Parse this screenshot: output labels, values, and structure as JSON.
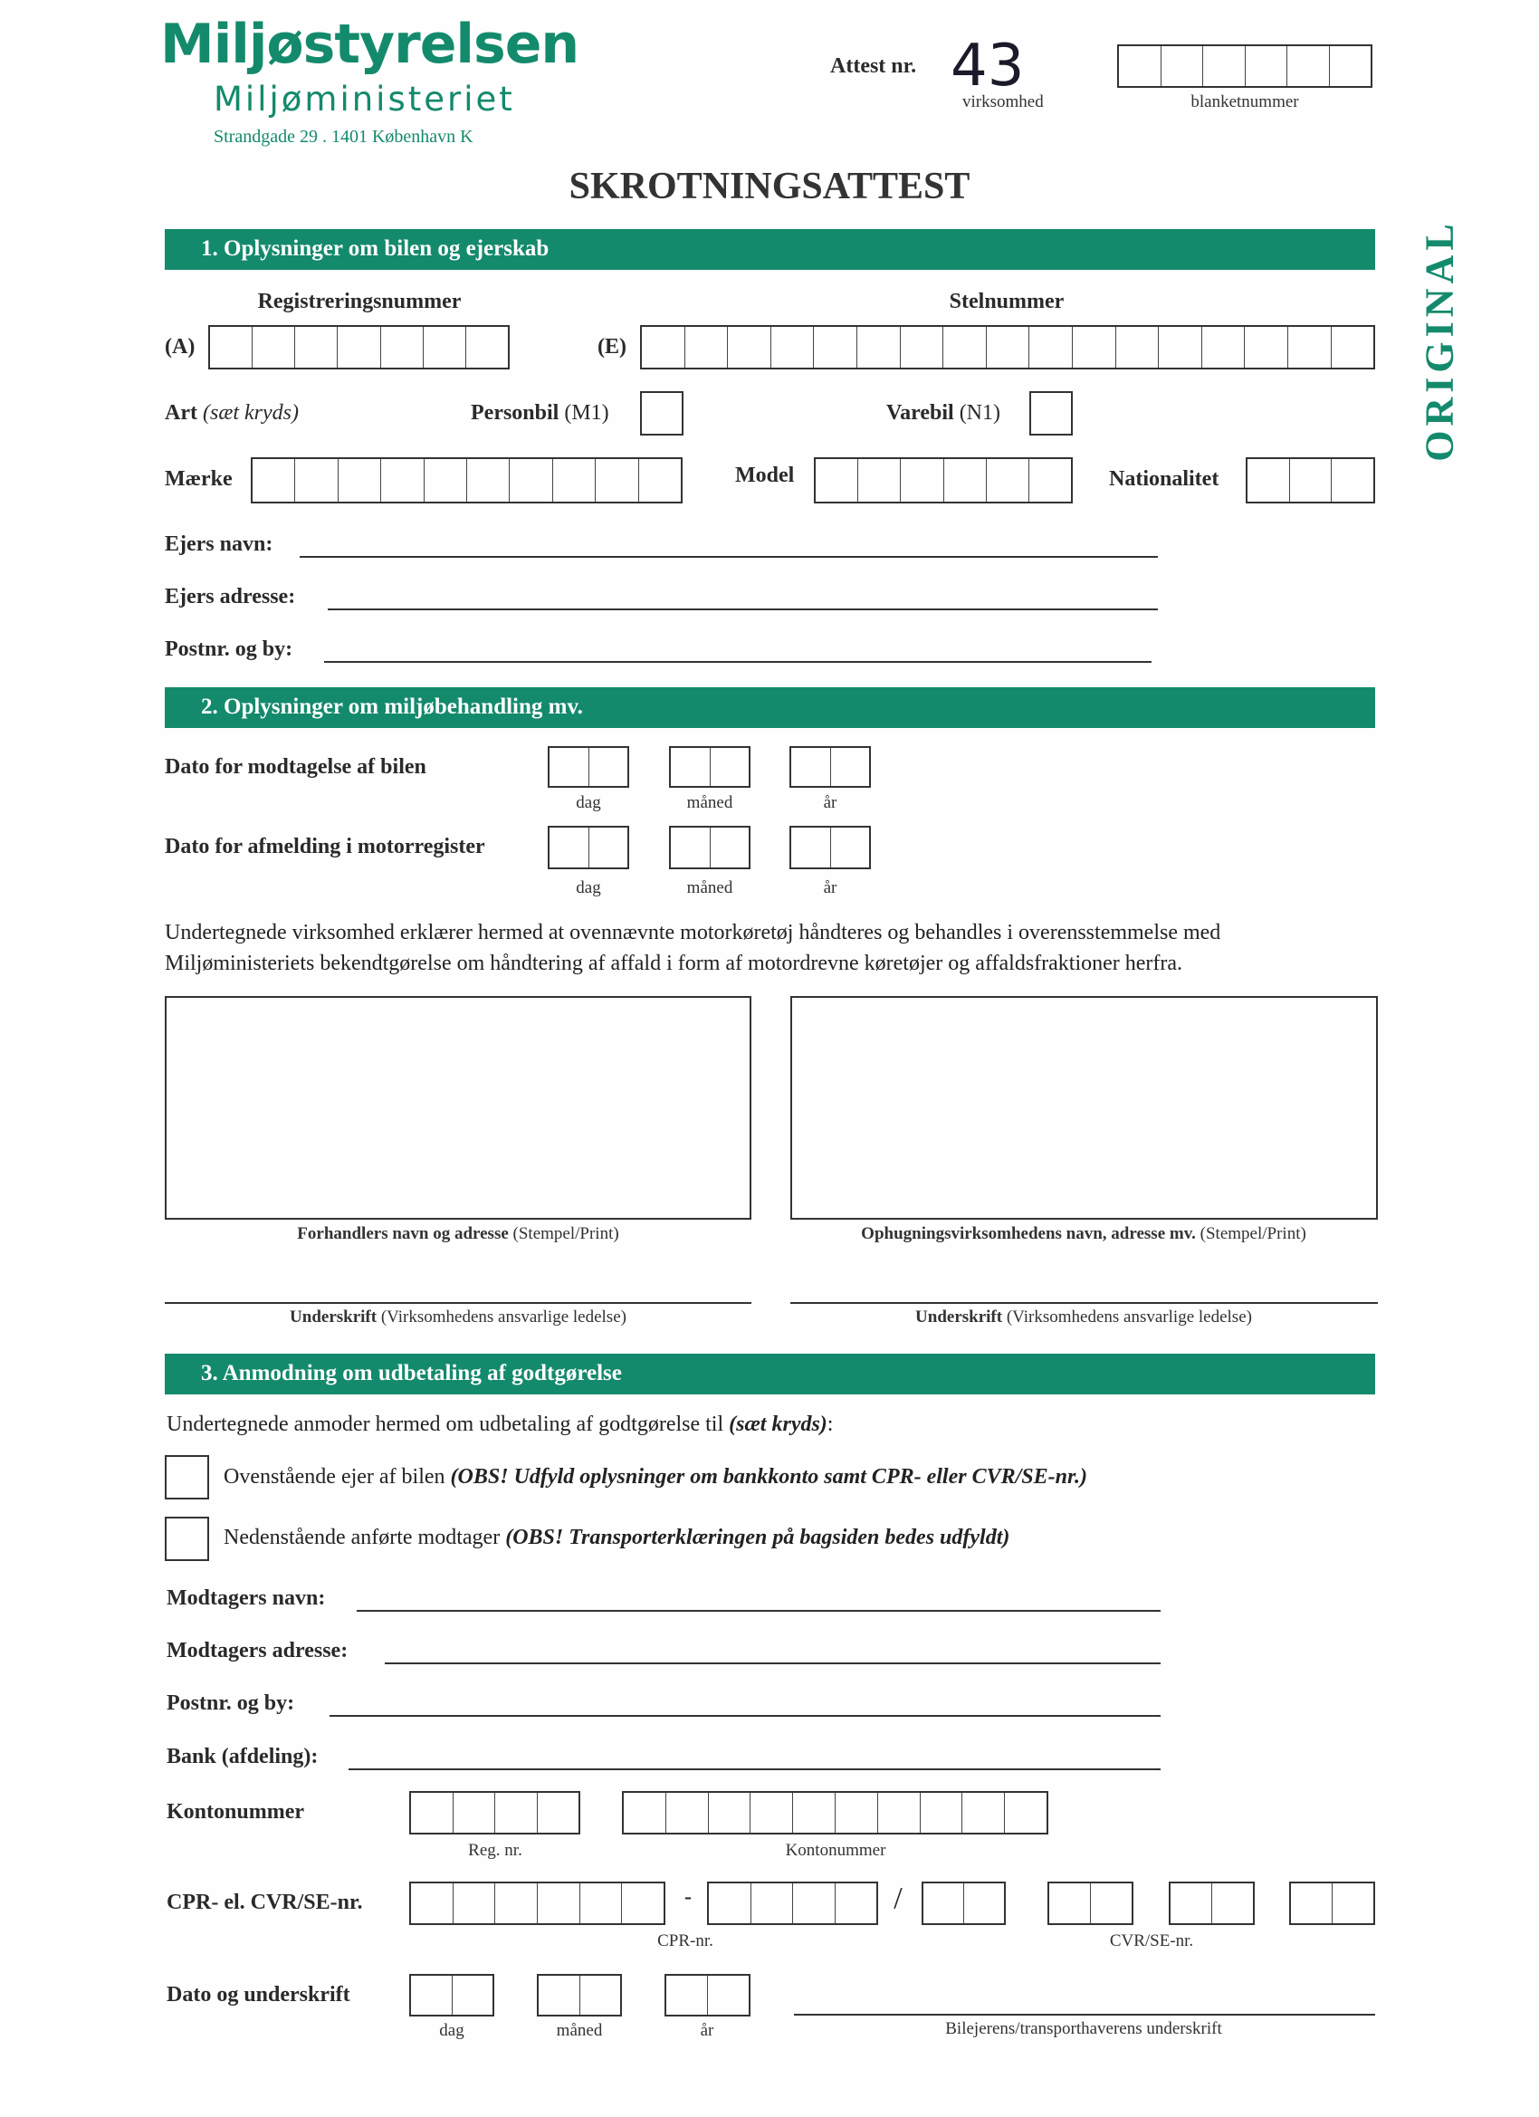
{
  "header": {
    "org": "Miljøstyrelsen",
    "ministry": "Miljøministeriet",
    "address": "Strandgade 29 . 1401 København K",
    "attest_label": "Attest nr.",
    "attest_number": "43",
    "virksomhed": "virksomhed",
    "blanketnummer": "blanketnummer",
    "title": "SKROTNINGSATTEST",
    "original": "ORIGINAL",
    "brand_color": "#148a6c"
  },
  "s1": {
    "heading": "1. Oplysninger om bilen og ejerskab",
    "reg_label": "Registreringsnummer",
    "stel_label": "Stelnummer",
    "a": "(A)",
    "e": "(E)",
    "art": "Art",
    "art_hint": "(sæt kryds)",
    "personbil": "Personbil",
    "m1": "(M1)",
    "varebil": "Varebil",
    "n1": "(N1)",
    "maerke": "Mærke",
    "model": "Model",
    "nationalitet": "Nationalitet",
    "ejers_navn": "Ejers navn:",
    "ejers_adresse": "Ejers adresse:",
    "postnr": "Postnr. og by:"
  },
  "s2": {
    "heading": "2. Oplysninger om miljøbehandling mv.",
    "dato_modtagelse": "Dato for modtagelse af bilen",
    "dato_afmelding": "Dato for afmelding i motorregister",
    "dag": "dag",
    "maaned": "måned",
    "aar": "år",
    "para1": "Undertegnede virksomhed erklærer hermed at ovennævnte motorkøretøj håndteres og behandles i overensstemmelse med",
    "para2": "Miljøministeriets bekendtgørelse om håndtering af affald i form af motordrevne køretøjer og affaldsfraktioner herfra.",
    "box_left_bold": "Forhandlers navn og adresse",
    "box_left_rest": "(Stempel/Print)",
    "box_right_bold": "Ophugningsvirksomhedens navn, adresse mv.",
    "box_right_rest": "(Stempel/Print)",
    "sig_bold": "Underskrift",
    "sig_rest": "(Virksomhedens ansvarlige ledelse)"
  },
  "s3": {
    "heading": "3. Anmodning om udbetaling af godtgørelse",
    "intro": "Undertegnede anmoder hermed om udbetaling af godtgørelse til",
    "intro_hint": "(sæt kryds)",
    "intro_colon": ":",
    "opt1": "Ovenstående ejer af bilen",
    "opt1_note": "(OBS! Udfyld oplysninger om bankkonto samt CPR- eller CVR/SE-nr.)",
    "opt2": "Nedenstående anførte modtager",
    "opt2_note": "(OBS! Transporterklæringen på bagsiden bedes udfyldt)",
    "modt_navn": "Modtagers navn:",
    "modt_adr": "Modtagers adresse:",
    "postnr": "Postnr. og by:",
    "bank": "Bank (afdeling):",
    "konto": "Kontonummer",
    "reg_nr": "Reg. nr.",
    "konto_sub": "Kontonummer",
    "cpr_label": "CPR- el. CVR/SE-nr.",
    "dash": "-",
    "slash": "/",
    "cpr_sub": "CPR-nr.",
    "cvr_sub": "CVR/SE-nr.",
    "dato": "Dato og underskrift",
    "dag": "dag",
    "maaned": "måned",
    "aar": "år",
    "sig_caption": "Bilejerens/transporthaverens underskrift"
  }
}
